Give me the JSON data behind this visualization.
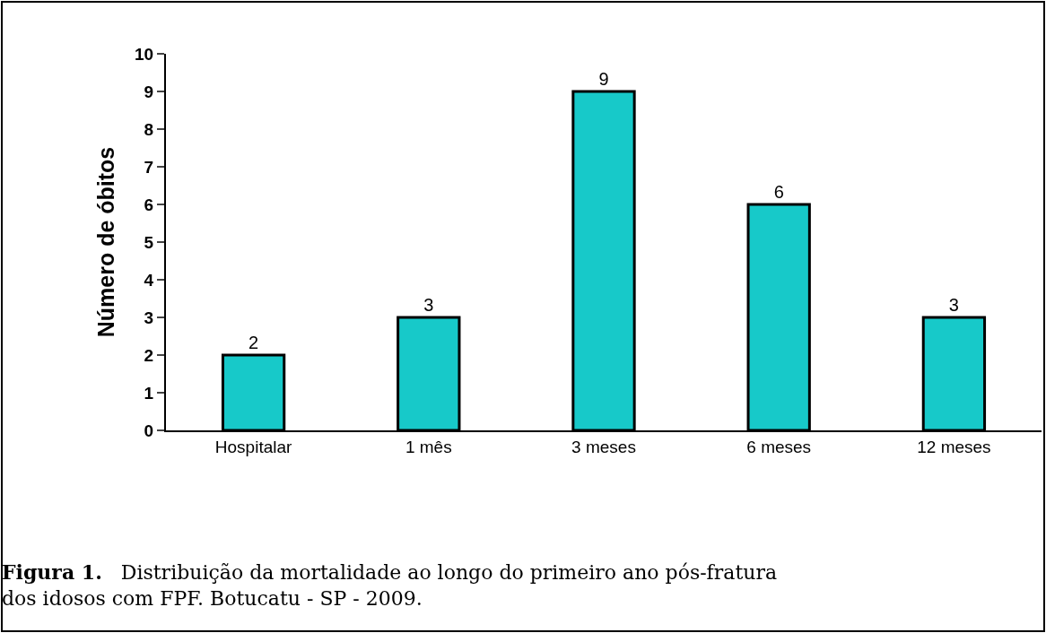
{
  "chart_data": {
    "type": "bar",
    "ylabel": "Número de óbitos",
    "categories": [
      "Hospitalar",
      "1 mês",
      "3 meses",
      "6 meses",
      "12 meses"
    ],
    "values": [
      2,
      3,
      9,
      6,
      3
    ],
    "color": "#17c9c9",
    "ylim": [
      0,
      10
    ],
    "yticks": [
      0,
      1,
      2,
      3,
      4,
      5,
      6,
      7,
      8,
      9,
      10
    ],
    "grid": false,
    "legend": false,
    "data_labels": true,
    "annotations": [
      "Figura 1.",
      "Distribuição da mortalidade ao longo do primeiro ano pós-fratura dos idosos com FPF. Botucatu - SP - 2009."
    ]
  }
}
